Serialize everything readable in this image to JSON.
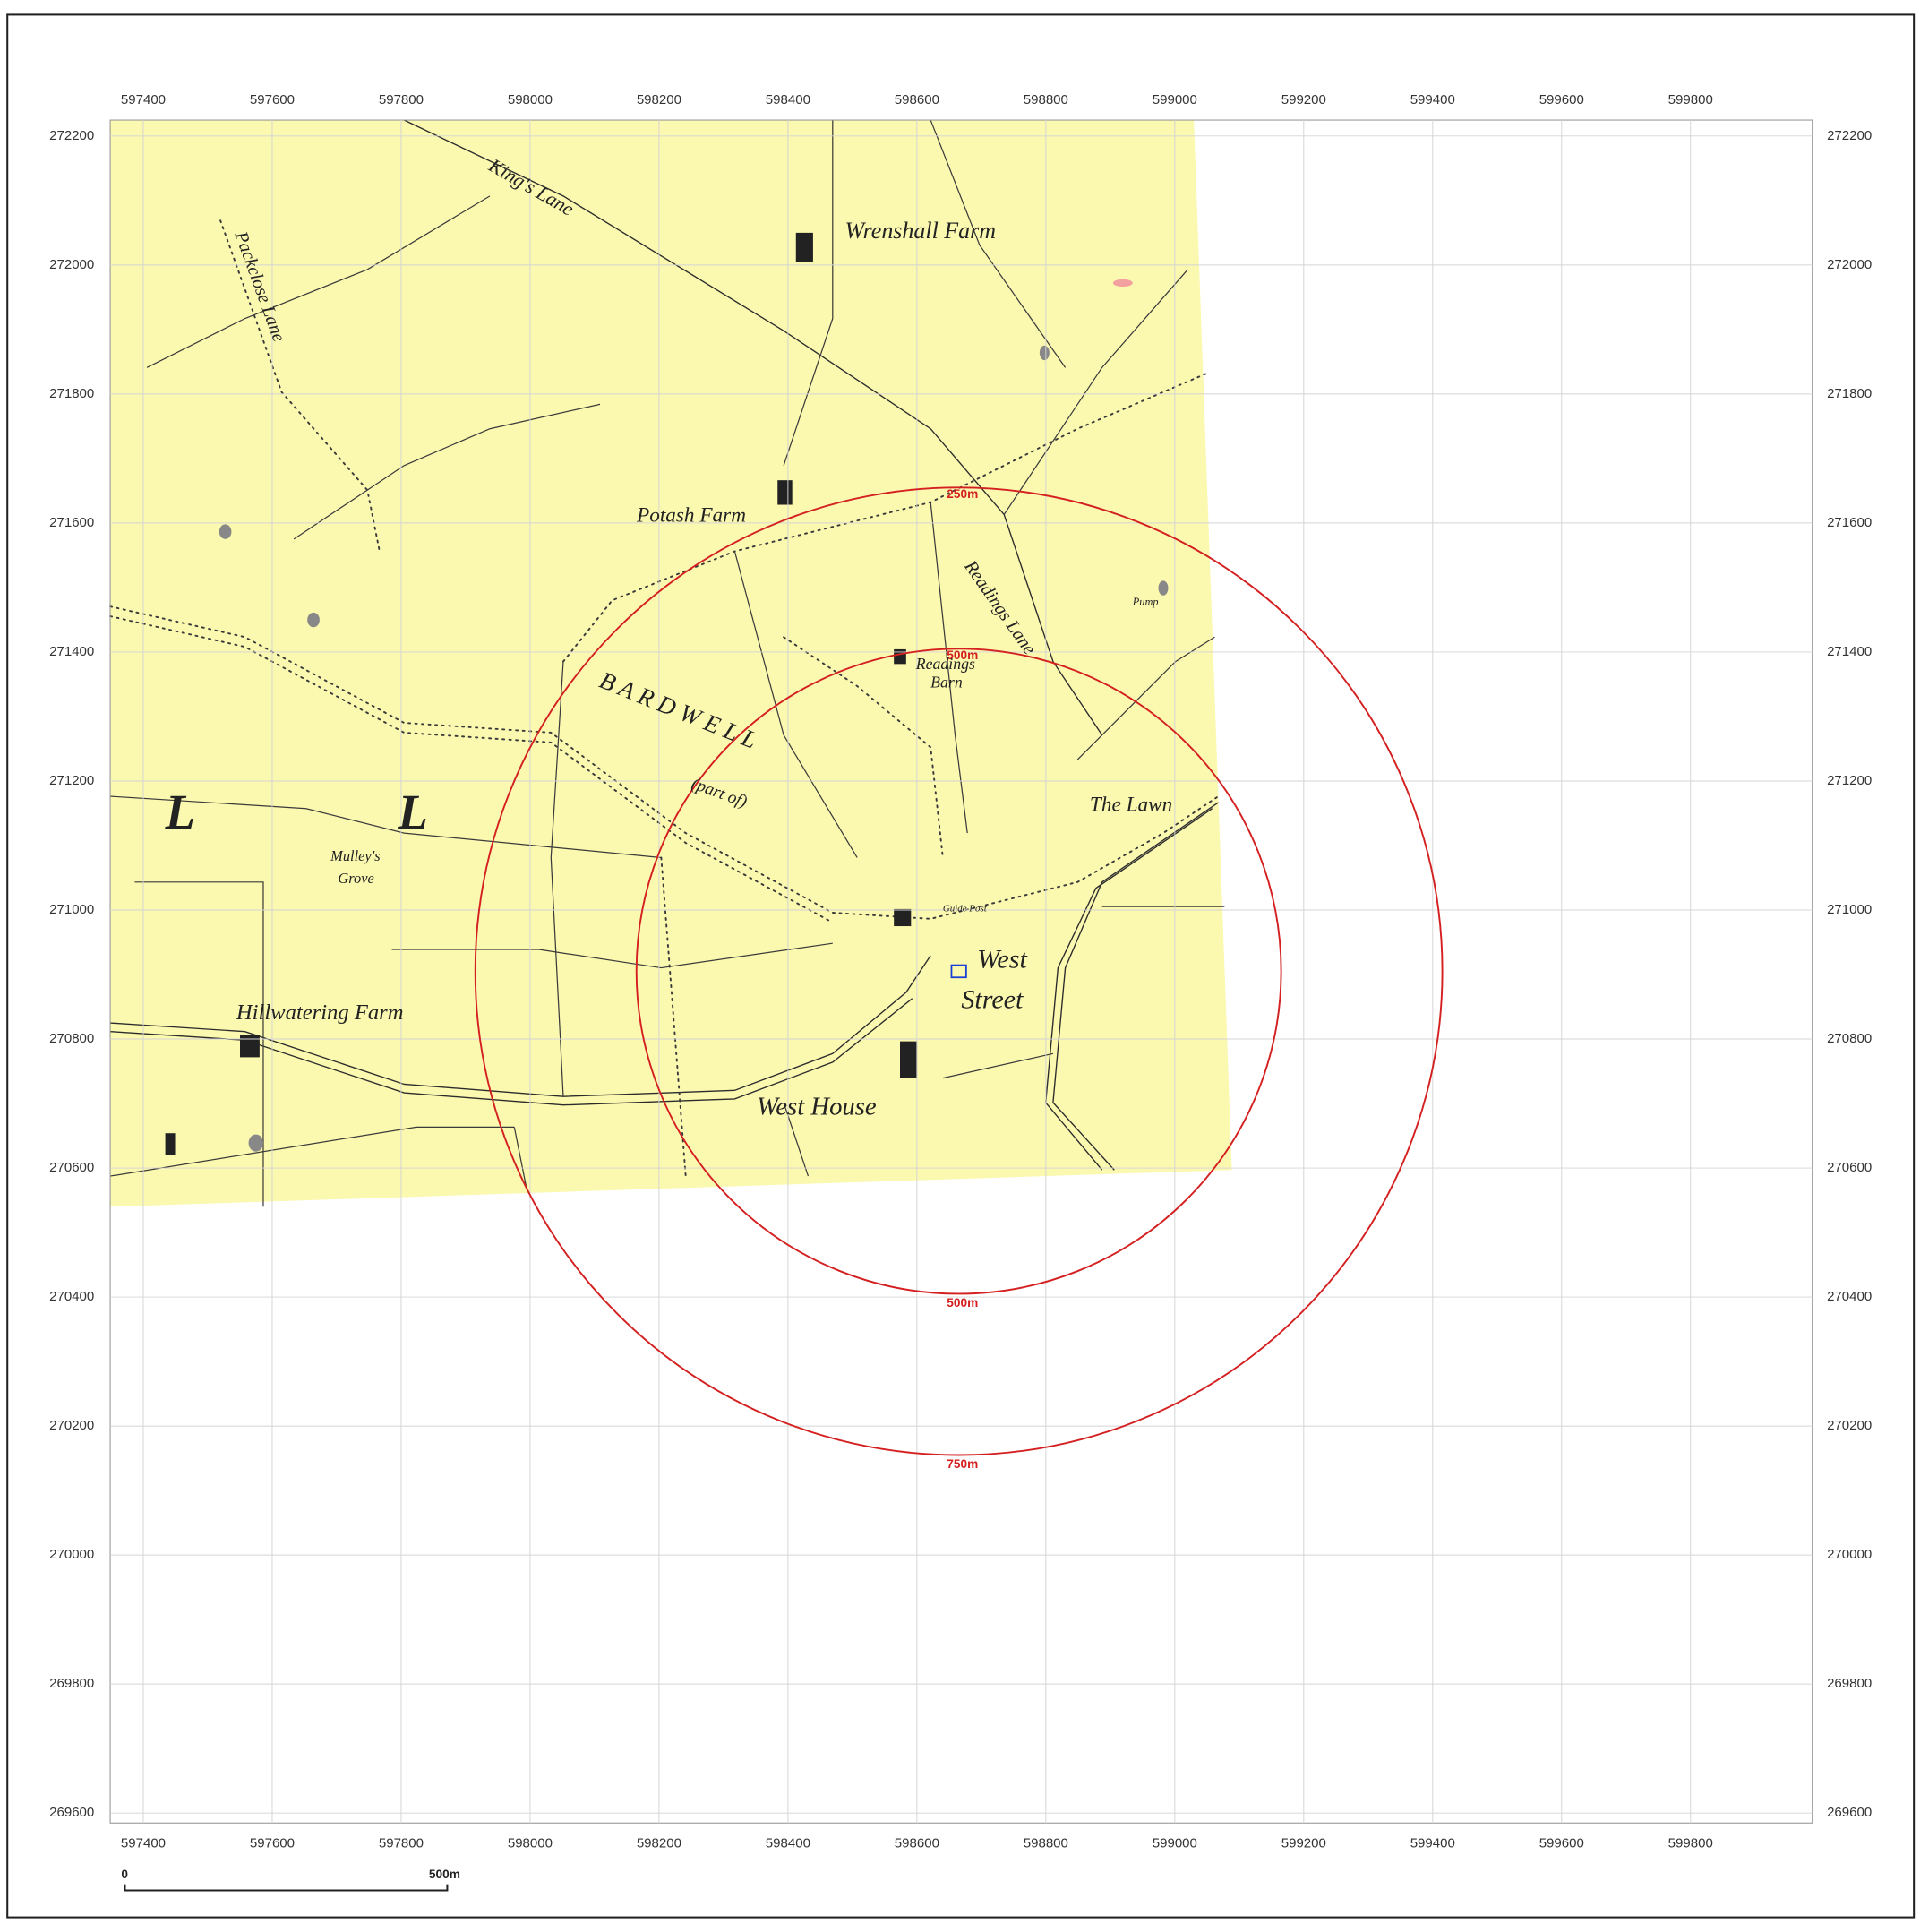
{
  "map": {
    "grid": {
      "eastings": [
        597400,
        597600,
        597800,
        598000,
        598200,
        598400,
        598600,
        598800,
        599000,
        599200,
        599400,
        599600,
        599800
      ],
      "northings": [
        272200,
        272000,
        271800,
        271600,
        271400,
        271200,
        271000,
        270800,
        270600,
        270400,
        270200,
        270000,
        269800,
        269600
      ]
    },
    "site": {
      "easting": 598665,
      "northing": 270905
    },
    "buffers": [
      {
        "radius_m": 500,
        "labels": [
          "500m",
          "500m"
        ]
      },
      {
        "radius_m": 750,
        "labels": [
          "250m",
          "750m"
        ]
      }
    ],
    "place_labels": [
      "Wrenshall Farm",
      "Potash Farm",
      "Readings",
      "Barn",
      "West",
      "Street",
      "West House",
      "Hillwatering Farm",
      "Mulley's",
      "Grove",
      "The Lawn",
      "L",
      "L",
      "King's Lane",
      "Packclose Lane",
      "Readings Lane",
      "B A R D W E L L",
      "(part of)",
      "Guide Post",
      "Pump"
    ],
    "scale_bar": {
      "length_m": 500,
      "labels": [
        "0",
        "500m"
      ]
    }
  }
}
